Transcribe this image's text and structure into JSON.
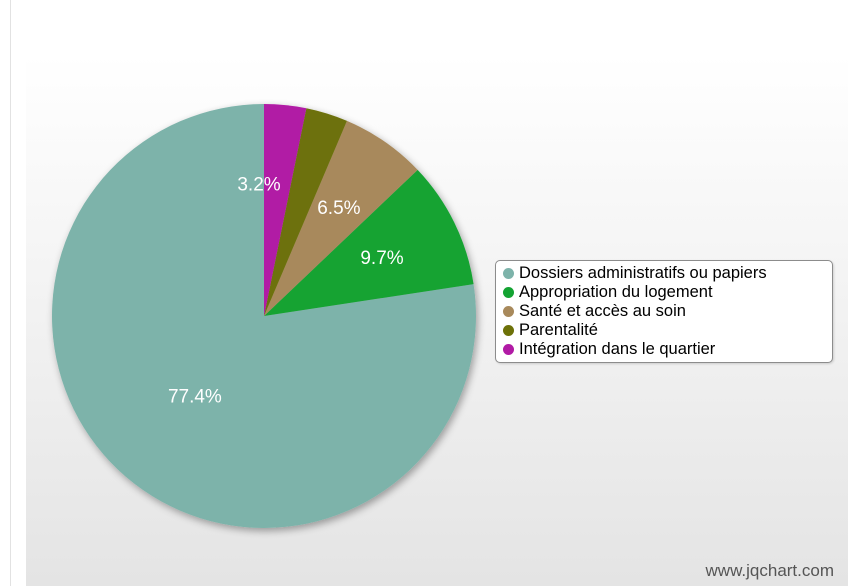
{
  "chart_data": {
    "type": "pie",
    "slices": [
      {
        "label": "Dossiers administratifs ou papiers",
        "value": 77.4,
        "display": "77.4%",
        "color": "#7db3aa"
      },
      {
        "label": "Appropriation du logement",
        "value": 9.7,
        "display": "9.7%",
        "color": "#13a332"
      },
      {
        "label": "Santé et accès au soin",
        "value": 6.5,
        "display": "6.5%",
        "color": "#a8895b"
      },
      {
        "label": "Parentalité",
        "value": 3.2,
        "display": "",
        "color": "#6d7108"
      },
      {
        "label": "Intégration dans le quartier",
        "value": 3.2,
        "display": "3.2%",
        "color": "#b11aa5"
      }
    ],
    "start": "top",
    "direction": "counterclockwise",
    "legend_position": "right"
  },
  "background": {
    "top_color": "#ffffff",
    "bottom_color": "#e4e4e4"
  },
  "watermark": "www.jqchart.com"
}
